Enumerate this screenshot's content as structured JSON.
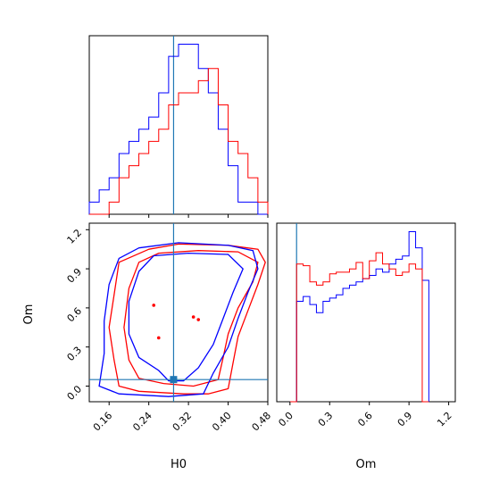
{
  "chart_data": {
    "type": "corner",
    "parameters": [
      "H0",
      "Om"
    ],
    "truth": {
      "H0": 0.29,
      "Om": 0.05
    },
    "truth_color": "#1f77b4",
    "series_colors": {
      "red": "#ff0000",
      "blue": "#0000ff"
    },
    "panels": {
      "hist_H0": {
        "xlim": [
          0.12,
          0.48
        ],
        "bin_edges": [
          0.12,
          0.14,
          0.16,
          0.18,
          0.2,
          0.22,
          0.24,
          0.26,
          0.28,
          0.3,
          0.32,
          0.34,
          0.36,
          0.38,
          0.4,
          0.42,
          0.44,
          0.46,
          0.48
        ],
        "blue": [
          1,
          2,
          3,
          5,
          6,
          7,
          8,
          10,
          13,
          14,
          14,
          12,
          10,
          7,
          4,
          1,
          1,
          0
        ],
        "red": [
          0,
          0,
          1,
          3,
          4,
          5,
          6,
          7,
          9,
          10,
          10,
          11,
          12,
          9,
          6,
          5,
          3,
          1
        ]
      },
      "hist_Om": {
        "xlim": [
          -0.1,
          1.25
        ],
        "xticks": [
          "0.0",
          "0.3",
          "0.6",
          "0.9",
          "1.2"
        ],
        "bin_edges": [
          0.0,
          0.05,
          0.1,
          0.15,
          0.2,
          0.25,
          0.3,
          0.35,
          0.4,
          0.45,
          0.5,
          0.55,
          0.6,
          0.65,
          0.7,
          0.75,
          0.8,
          0.85,
          0.9,
          0.95,
          1.0,
          1.05
        ],
        "blue": [
          0,
          0.62,
          0.65,
          0.6,
          0.55,
          0.62,
          0.64,
          0.66,
          0.7,
          0.72,
          0.74,
          0.76,
          0.78,
          0.82,
          0.8,
          0.85,
          0.88,
          0.9,
          1.05,
          0.95,
          0.75,
          0
        ],
        "red": [
          0,
          0.85,
          0.84,
          0.74,
          0.72,
          0.74,
          0.79,
          0.8,
          0.8,
          0.82,
          0.86,
          0.76,
          0.87,
          0.92,
          0.85,
          0.82,
          0.78,
          0.8,
          0.85,
          0.82,
          0,
          0
        ]
      },
      "contour": {
        "xlim": [
          0.12,
          0.48
        ],
        "ylim": [
          -0.12,
          1.25
        ],
        "xticks": [
          "0.16",
          "0.24",
          "0.32",
          "0.40",
          "0.48"
        ],
        "yticks": [
          "0.0",
          "0.3",
          "0.6",
          "0.9",
          "1.2"
        ],
        "red_contours": [
          [
            [
              0.24,
              1.05
            ],
            [
              0.3,
              1.09
            ],
            [
              0.4,
              1.08
            ],
            [
              0.46,
              1.05
            ],
            [
              0.475,
              0.95
            ],
            [
              0.46,
              0.78
            ],
            [
              0.44,
              0.58
            ],
            [
              0.42,
              0.38
            ],
            [
              0.41,
              0.18
            ],
            [
              0.4,
              -0.02
            ],
            [
              0.36,
              -0.06
            ],
            [
              0.31,
              -0.06
            ],
            [
              0.22,
              -0.04
            ],
            [
              0.18,
              0.0
            ],
            [
              0.17,
              0.2
            ],
            [
              0.16,
              0.45
            ],
            [
              0.17,
              0.7
            ],
            [
              0.18,
              0.95
            ],
            [
              0.24,
              1.05
            ]
          ],
          [
            [
              0.26,
              1.02
            ],
            [
              0.34,
              1.04
            ],
            [
              0.42,
              1.03
            ],
            [
              0.46,
              0.95
            ],
            [
              0.45,
              0.8
            ],
            [
              0.42,
              0.6
            ],
            [
              0.4,
              0.4
            ],
            [
              0.39,
              0.22
            ],
            [
              0.38,
              0.05
            ],
            [
              0.33,
              0.0
            ],
            [
              0.27,
              0.02
            ],
            [
              0.22,
              0.06
            ],
            [
              0.2,
              0.2
            ],
            [
              0.19,
              0.45
            ],
            [
              0.2,
              0.75
            ],
            [
              0.22,
              0.95
            ],
            [
              0.26,
              1.02
            ]
          ]
        ],
        "blue_contours": [
          [
            [
              0.22,
              1.06
            ],
            [
              0.3,
              1.1
            ],
            [
              0.4,
              1.08
            ],
            [
              0.45,
              1.04
            ],
            [
              0.46,
              0.9
            ],
            [
              0.44,
              0.72
            ],
            [
              0.42,
              0.52
            ],
            [
              0.4,
              0.3
            ],
            [
              0.37,
              0.1
            ],
            [
              0.35,
              -0.06
            ],
            [
              0.28,
              -0.08
            ],
            [
              0.18,
              -0.06
            ],
            [
              0.14,
              0.0
            ],
            [
              0.15,
              0.25
            ],
            [
              0.15,
              0.5
            ],
            [
              0.16,
              0.78
            ],
            [
              0.18,
              0.98
            ],
            [
              0.22,
              1.06
            ]
          ],
          [
            [
              0.25,
              1.0
            ],
            [
              0.32,
              1.02
            ],
            [
              0.4,
              1.01
            ],
            [
              0.43,
              0.9
            ],
            [
              0.41,
              0.72
            ],
            [
              0.39,
              0.52
            ],
            [
              0.37,
              0.32
            ],
            [
              0.34,
              0.14
            ],
            [
              0.31,
              0.04
            ],
            [
              0.28,
              0.04
            ],
            [
              0.26,
              0.12
            ],
            [
              0.22,
              0.22
            ],
            [
              0.2,
              0.4
            ],
            [
              0.2,
              0.65
            ],
            [
              0.22,
              0.88
            ],
            [
              0.25,
              1.0
            ]
          ]
        ],
        "red_points": [
          [
            0.25,
            0.62
          ],
          [
            0.26,
            0.37
          ],
          [
            0.33,
            0.53
          ],
          [
            0.34,
            0.51
          ]
        ]
      }
    }
  }
}
